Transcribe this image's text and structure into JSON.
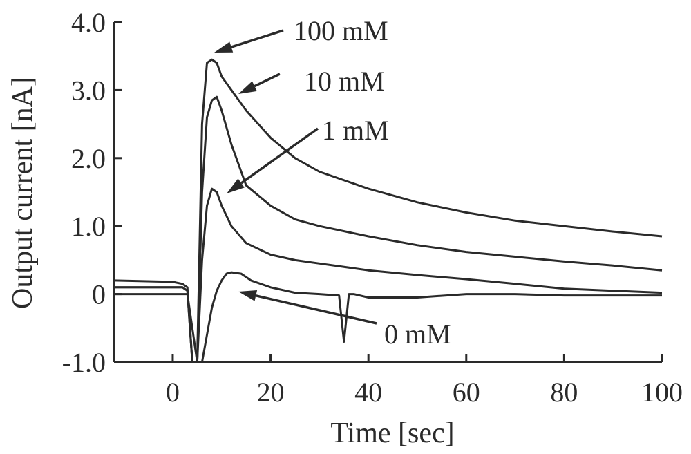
{
  "chart_data": {
    "type": "line",
    "title": "",
    "xlabel": "Time [sec]",
    "ylabel": "Output current [nA]",
    "xlim": [
      -12,
      100
    ],
    "ylim": [
      -1.0,
      4.0
    ],
    "x_ticks": [
      0,
      20,
      40,
      60,
      80,
      100
    ],
    "x_tick_labels": [
      "0",
      "20",
      "40",
      "60",
      "80",
      "100"
    ],
    "y_ticks": [
      -1.0,
      0,
      1.0,
      2.0,
      3.0,
      4.0
    ],
    "y_tick_labels": [
      "-1.0",
      "0",
      "1.0",
      "2.0",
      "3.0",
      "4.0"
    ],
    "grid": false,
    "legend": "none",
    "series": [
      {
        "name": "100 mM",
        "x": [
          -12,
          0,
          2,
          3,
          4,
          5,
          6,
          7,
          8,
          9,
          10,
          12,
          15,
          20,
          25,
          30,
          40,
          50,
          60,
          70,
          80,
          90,
          100
        ],
        "y": [
          0.1,
          0.1,
          0.1,
          0.05,
          -1.0,
          -1.0,
          2.5,
          3.4,
          3.45,
          3.4,
          3.2,
          3.0,
          2.7,
          2.3,
          2.0,
          1.8,
          1.55,
          1.35,
          1.2,
          1.08,
          1.0,
          0.92,
          0.85
        ]
      },
      {
        "name": "10 mM",
        "x": [
          -12,
          0,
          2,
          3,
          4,
          5,
          6,
          7,
          8,
          9,
          10,
          12,
          15,
          20,
          25,
          30,
          40,
          50,
          60,
          70,
          80,
          90,
          100
        ],
        "y": [
          0.2,
          0.18,
          0.15,
          0.1,
          -1.0,
          -1.0,
          1.5,
          2.6,
          2.85,
          2.9,
          2.7,
          2.2,
          1.6,
          1.3,
          1.1,
          1.0,
          0.85,
          0.72,
          0.62,
          0.55,
          0.48,
          0.42,
          0.35
        ]
      },
      {
        "name": "1 mM",
        "x": [
          -12,
          0,
          2,
          3,
          4,
          5,
          6,
          7,
          8,
          9,
          10,
          12,
          15,
          20,
          25,
          30,
          40,
          50,
          60,
          70,
          80,
          90,
          100
        ],
        "y": [
          0.1,
          0.1,
          0.1,
          0.05,
          -1.0,
          -1.0,
          0.5,
          1.3,
          1.55,
          1.5,
          1.3,
          1.0,
          0.75,
          0.58,
          0.5,
          0.45,
          0.35,
          0.28,
          0.22,
          0.15,
          0.08,
          0.05,
          0.02
        ]
      },
      {
        "name": "0 mM",
        "x": [
          -12,
          0,
          2,
          3,
          4,
          5,
          6,
          7,
          8,
          9,
          10,
          11,
          12,
          14,
          16,
          20,
          25,
          30,
          34,
          35,
          36,
          37,
          40,
          50,
          60,
          70,
          80,
          90,
          100
        ],
        "y": [
          0.0,
          0.0,
          0.0,
          0.0,
          -0.5,
          -1.0,
          -1.0,
          -0.6,
          -0.2,
          0.05,
          0.2,
          0.3,
          0.32,
          0.3,
          0.2,
          0.1,
          0.02,
          0.0,
          -0.02,
          -0.7,
          0.0,
          0.0,
          -0.05,
          -0.05,
          0.0,
          0.0,
          -0.02,
          -0.02,
          -0.02
        ]
      }
    ],
    "annotations": [
      {
        "text": "100 mM",
        "x": 9,
        "y": 3.55
      },
      {
        "text": "10 mM",
        "x": 12,
        "y": 3.1
      },
      {
        "text": "1 mM",
        "x": 9,
        "y": 1.55
      },
      {
        "text": "0 mM",
        "x": 15,
        "y": 0.07
      }
    ]
  }
}
